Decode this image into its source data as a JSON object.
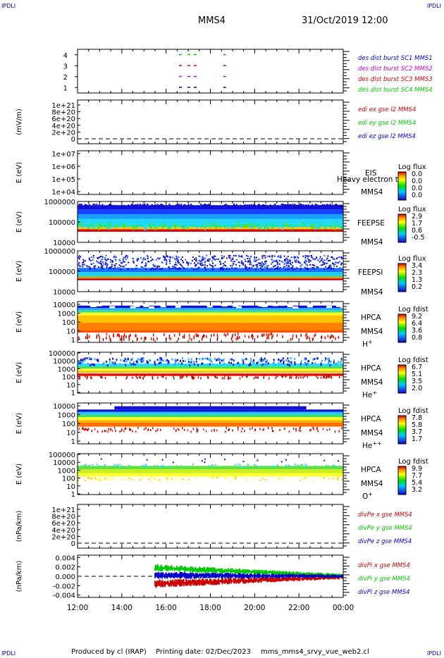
{
  "header": {
    "corner_label": "IPDLI",
    "title": "MMS4",
    "datetime": "31/Oct/2019 12:00"
  },
  "footer": {
    "produced_by": "Produced by cl (IRAP)",
    "printing_date": "Printing date: 02/Dec/2023",
    "filename": "mms_mms4_srvy_vue_web2.cl"
  },
  "colors": {
    "mms1": "#0000c8",
    "mms2": "#c800c8",
    "mms3": "#c80000",
    "mms4": "#00c800",
    "ex": "#c80000",
    "ey": "#00c800",
    "ez": "#0000c8"
  },
  "time_axis": {
    "tick_labels": [
      "12:00",
      "14:00",
      "16:00",
      "18:00",
      "20:00",
      "22:00",
      "00:00"
    ]
  },
  "chart_data": [
    {
      "type": "scatter",
      "panel": "burst",
      "ylim": [
        0.5,
        4.5
      ],
      "yticks": [
        "1",
        "2",
        "3",
        "4"
      ],
      "x_range": [
        "12:00",
        "00:00"
      ],
      "series": [
        {
          "name": "des dist burst SC1 MMS1",
          "y": 1,
          "x": [
            "16:35",
            "16:58",
            "17:15",
            "18:35"
          ]
        },
        {
          "name": "des dist burst SC2 MMS2",
          "y": 2,
          "x": [
            "16:35",
            "16:58",
            "17:15",
            "18:35"
          ]
        },
        {
          "name": "des dist burst SC3 MMS3",
          "y": 3,
          "x": [
            "16:35",
            "16:58",
            "17:15",
            "18:35"
          ]
        },
        {
          "name": "des dist burst SC4 MMS4",
          "y": 4,
          "x": [
            "16:35",
            "16:58",
            "17:15",
            "18:35"
          ]
        }
      ]
    },
    {
      "type": "line",
      "panel": "edi",
      "ylabel": "(mV/m)",
      "yticks": [
        "0",
        "2e+20",
        "4e+20",
        "6e+20",
        "8e+20",
        "1e+21"
      ],
      "ylim": [
        0,
        1e+21
      ],
      "series": [
        {
          "name": "edi ex gse l2 MMS4",
          "values": []
        },
        {
          "name": "edi ey gse l2 MMS4",
          "values": []
        },
        {
          "name": "edi ez gse l2 MMS4",
          "values": []
        }
      ],
      "reference_line": 0
    },
    {
      "type": "heatmap",
      "panel": "eis",
      "ylabel": "E (eV)",
      "yticks": [
        "1e+04",
        "1e+05",
        "1e+06",
        "1e+07"
      ],
      "instrument": "EIS",
      "overlay_label": "Heavy electron to",
      "spacecraft": "MMS4",
      "colorbar": {
        "title": "Log flux",
        "ticks": [
          "0.0",
          "0.0",
          "0.0",
          "0.0"
        ]
      }
    },
    {
      "type": "heatmap",
      "panel": "feepse",
      "ylabel": "E (eV)",
      "yticks": [
        "10000",
        "100000",
        "1000000"
      ],
      "instrument": "FEEPSE",
      "spacecraft": "MMS4",
      "x_range": [
        "12:00",
        "00:00"
      ],
      "colorbar": {
        "title": "Log flux",
        "ticks": [
          "2.9",
          "1.7",
          "0.6",
          "-0.5"
        ]
      }
    },
    {
      "type": "heatmap",
      "panel": "feepsi",
      "ylabel": "E (eV)",
      "yticks": [
        "10000",
        "100000",
        "1000000"
      ],
      "instrument": "FEEPSI",
      "spacecraft": "MMS4",
      "x_range": [
        "12:00",
        "00:00"
      ],
      "colorbar": {
        "title": "Log flux",
        "ticks": [
          "3.4",
          "2.3",
          "1.3",
          "0.2"
        ]
      }
    },
    {
      "type": "heatmap",
      "panel": "hpca_h",
      "ylabel": "E (eV)",
      "yticks": [
        "1",
        "10",
        "100",
        "1000",
        "10000"
      ],
      "instrument": "HPCA",
      "spacecraft": "MMS4",
      "species": "H",
      "species_sup": "+",
      "x_range": [
        "12:00",
        "00:00"
      ],
      "colorbar": {
        "title": "Log fdist",
        "ticks": [
          "9.2",
          "6.4",
          "3.6",
          "0.8"
        ]
      }
    },
    {
      "type": "heatmap",
      "panel": "hpca_he1",
      "ylabel": "E (eV)",
      "yticks": [
        "1",
        "10",
        "100",
        "1000",
        "10000",
        "100000"
      ],
      "instrument": "HPCA",
      "spacecraft": "MMS4",
      "species": "He",
      "species_sup": "+",
      "x_range": [
        "12:00",
        "00:00"
      ],
      "colorbar": {
        "title": "Log fdist",
        "ticks": [
          "6.7",
          "5.1",
          "3.5",
          "2.0"
        ]
      }
    },
    {
      "type": "heatmap",
      "panel": "hpca_he2",
      "ylabel": "E (eV)",
      "yticks": [
        "1",
        "10",
        "100",
        "1000",
        "10000"
      ],
      "instrument": "HPCA",
      "spacecraft": "MMS4",
      "species": "He",
      "species_sup": "++",
      "x_range": [
        "12:00",
        "00:00"
      ],
      "colorbar": {
        "title": "Log fdist",
        "ticks": [
          "7.8",
          "5.8",
          "3.7",
          "1.7"
        ]
      }
    },
    {
      "type": "heatmap",
      "panel": "hpca_o",
      "ylabel": "E (eV)",
      "yticks": [
        "1",
        "10",
        "100",
        "1000",
        "10000",
        "100000"
      ],
      "instrument": "HPCA",
      "spacecraft": "MMS4",
      "species": "O",
      "species_sup": "+",
      "x_range": [
        "12:00",
        "00:00"
      ],
      "colorbar": {
        "title": "Log fdist",
        "ticks": [
          "9.9",
          "7.7",
          "5.4",
          "3.2"
        ]
      }
    },
    {
      "type": "line",
      "panel": "divpe",
      "ylabel": "(nPa/km)",
      "yticks": [
        "0",
        "2e+20",
        "4e+20",
        "6e+20",
        "8e+20",
        "1e+21"
      ],
      "ylim": [
        0,
        1e+21
      ],
      "series": [
        {
          "name": "divPe x gse MMS4",
          "values": []
        },
        {
          "name": "divPe y gse MMS4",
          "values": []
        },
        {
          "name": "divPe z gse MMS4",
          "values": []
        }
      ],
      "reference_line": 0
    },
    {
      "type": "line",
      "panel": "divpi",
      "ylabel": "(nPa/km)",
      "yticks": [
        "-0.004",
        "-0.002",
        "0.000",
        "0.002",
        "0.004"
      ],
      "ylim": [
        -0.0045,
        0.0045
      ],
      "data_start": "15:30",
      "series": [
        {
          "name": "divPi x gse MMS4",
          "center": -0.0016,
          "end_center": -0.0002,
          "spread": 0.0009
        },
        {
          "name": "divPi y gse MMS4",
          "center": 0.0018,
          "end_center": 0.0002,
          "spread": 0.0008
        },
        {
          "name": "divPi z gse MMS4",
          "center": 0.0002,
          "end_center": 0.0,
          "spread": 0.0008
        }
      ],
      "reference_line": 0
    }
  ]
}
